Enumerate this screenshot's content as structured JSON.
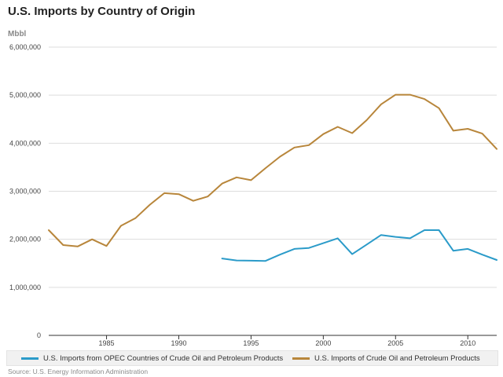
{
  "header": {
    "title": "U.S. Imports by Country of Origin",
    "unit": "Mbbl"
  },
  "footer": {
    "source": "Source: U.S. Energy Information Administration"
  },
  "chart_data": {
    "type": "line",
    "title": "U.S. Imports by Country of Origin",
    "ylabel": "Mbbl",
    "xlabel": "",
    "xlim": [
      1981,
      2012
    ],
    "ylim": [
      0,
      6000000
    ],
    "x_ticks": [
      1985,
      1990,
      1995,
      2000,
      2005,
      2010
    ],
    "y_ticks": [
      0,
      1000000,
      2000000,
      3000000,
      4000000,
      5000000,
      6000000
    ],
    "y_tick_labels": [
      "0",
      "1,000,000",
      "2,000,000",
      "3,000,000",
      "4,000,000",
      "5,000,000",
      "6,000,000"
    ],
    "grid": "horizontal",
    "legend": "bottom",
    "series": [
      {
        "name": "U.S. Imports from OPEC Countries of Crude Oil and Petroleum Products",
        "color": "#2b9bc9",
        "x": [
          1993,
          1994,
          1995,
          1996,
          1997,
          1998,
          1999,
          2000,
          2001,
          2002,
          2003,
          2004,
          2005,
          2006,
          2007,
          2008,
          2009,
          2010,
          2011,
          2012
        ],
        "y": [
          1600000,
          1560000,
          1555000,
          1550000,
          1680000,
          1800000,
          1820000,
          1920000,
          2020000,
          1690000,
          1890000,
          2090000,
          2050000,
          2020000,
          2190000,
          2190000,
          1760000,
          1800000,
          1680000,
          1570000
        ]
      },
      {
        "name": "U.S. Imports of Crude Oil and Petroleum Products",
        "color": "#b8863b",
        "x": [
          1981,
          1982,
          1983,
          1984,
          1985,
          1986,
          1987,
          1988,
          1989,
          1990,
          1991,
          1992,
          1993,
          1994,
          1995,
          1996,
          1997,
          1998,
          1999,
          2000,
          2001,
          2002,
          2003,
          2004,
          2005,
          2006,
          2007,
          2008,
          2009,
          2010,
          2011,
          2012
        ],
        "y": [
          2190000,
          1880000,
          1850000,
          2000000,
          1860000,
          2280000,
          2440000,
          2720000,
          2960000,
          2940000,
          2800000,
          2890000,
          3160000,
          3290000,
          3230000,
          3480000,
          3720000,
          3910000,
          3960000,
          4190000,
          4340000,
          4210000,
          4480000,
          4810000,
          5010000,
          5010000,
          4920000,
          4730000,
          4260000,
          4300000,
          4200000,
          3880000
        ]
      }
    ]
  }
}
